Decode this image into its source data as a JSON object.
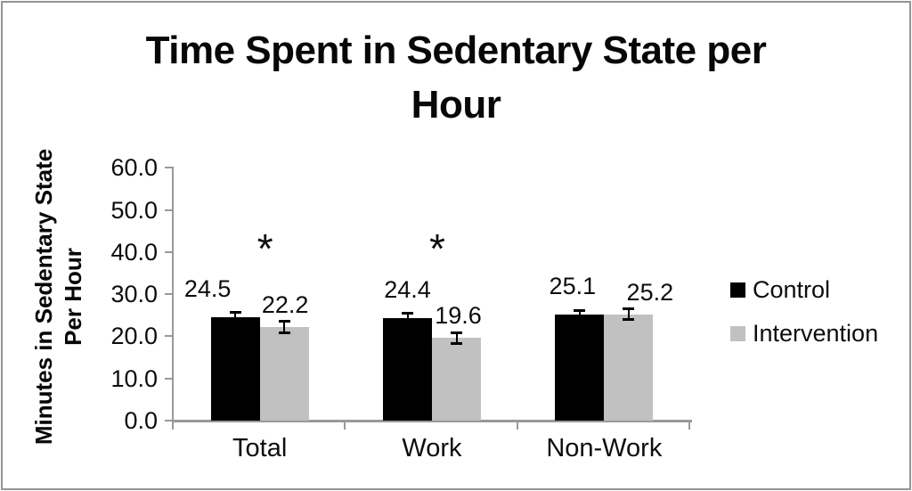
{
  "chart_data": {
    "type": "bar",
    "title": "Time Spent in Sedentary State per Hour",
    "title_lines": [
      "Time Spent in Sedentary State per",
      "Hour"
    ],
    "ylabel": "Minutes in Sedentary State Per Hour",
    "ylabel_lines": [
      "Minutes in Sedentary State",
      "Per Hour"
    ],
    "xlabel": "",
    "categories": [
      "Total",
      "Work",
      "Non-Work"
    ],
    "series": [
      {
        "name": "Control",
        "color": "#000000",
        "values": [
          24.5,
          24.4,
          25.1
        ],
        "errors": [
          1.0,
          1.0,
          1.0
        ]
      },
      {
        "name": "Intervention",
        "color": "#c1c1c1",
        "values": [
          22.2,
          19.6,
          25.2
        ],
        "errors": [
          1.2,
          1.2,
          1.2
        ]
      }
    ],
    "value_label_format": "0.0",
    "significance_by_category": [
      "*",
      "*",
      ""
    ],
    "ylim": [
      0,
      60
    ],
    "ytick_step": 10,
    "ytick_labels": [
      "0.0",
      "10.0",
      "20.0",
      "30.0",
      "40.0",
      "50.0",
      "60.0"
    ],
    "grid": false,
    "error_bars": true,
    "legend_position": "right",
    "colors": {
      "axis": "#999999",
      "text": "#0d0d0d",
      "background": "#ffffff",
      "border": "#949494"
    }
  }
}
